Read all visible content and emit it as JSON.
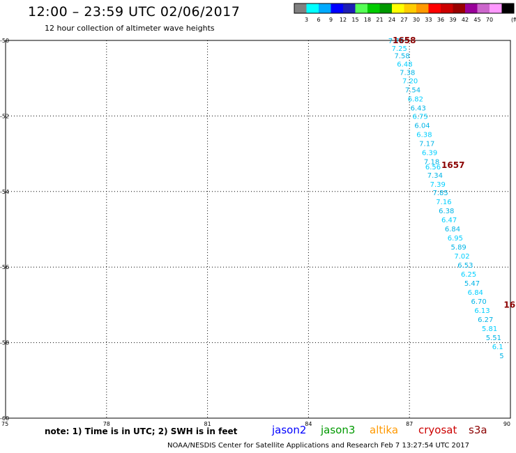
{
  "header": {
    "title": "12:00 – 23:59 UTC 02/06/2017",
    "subtitle": "12 hour collection of altimeter wave heights"
  },
  "colorbar": {
    "unit": "(ft)",
    "colors": [
      "#808080",
      "#00ffff",
      "#00aaff",
      "#0000ff",
      "#1e1eb4",
      "#55ff55",
      "#00cc00",
      "#009900",
      "#ffff00",
      "#ffcc00",
      "#ff9900",
      "#ff0000",
      "#cc0000",
      "#990000",
      "#990099",
      "#cc66cc",
      "#ff99ff",
      "#000000"
    ],
    "labels": [
      "3",
      "6",
      "9",
      "12",
      "15",
      "18",
      "21",
      "24",
      "27",
      "30",
      "33",
      "36",
      "39",
      "42",
      "45",
      "70"
    ]
  },
  "chart_data": {
    "type": "scatter",
    "xlim": [
      75,
      90
    ],
    "ylim": [
      -60,
      -50
    ],
    "x_ticks": [
      "75",
      "78",
      "81",
      "84",
      "87",
      "90"
    ],
    "y_ticks": [
      "-50",
      "-52",
      "-54",
      "-56",
      "-58",
      "-60"
    ],
    "grid": true,
    "observations": [
      {
        "lon": 86.6,
        "lat": -50.0,
        "label": "7.72"
      },
      {
        "lon": 86.7,
        "lat": -50.2,
        "label": "7.25"
      },
      {
        "lon": 86.78,
        "lat": -50.4,
        "label": "7.58"
      },
      {
        "lon": 86.86,
        "lat": -50.62,
        "label": "6.48"
      },
      {
        "lon": 86.94,
        "lat": -50.84,
        "label": "7.38"
      },
      {
        "lon": 87.02,
        "lat": -51.06,
        "label": "7.20"
      },
      {
        "lon": 87.1,
        "lat": -51.3,
        "label": "7.54"
      },
      {
        "lon": 87.18,
        "lat": -51.54,
        "label": "6.82"
      },
      {
        "lon": 87.26,
        "lat": -51.78,
        "label": "6.43"
      },
      {
        "lon": 87.32,
        "lat": -52.0,
        "label": "6.75"
      },
      {
        "lon": 87.38,
        "lat": -52.24,
        "label": "6.04"
      },
      {
        "lon": 87.44,
        "lat": -52.48,
        "label": "6.38"
      },
      {
        "lon": 87.52,
        "lat": -52.72,
        "label": "7.17"
      },
      {
        "lon": 87.6,
        "lat": -52.96,
        "label": "6.39"
      },
      {
        "lon": 87.66,
        "lat": -53.2,
        "label": "7.18"
      },
      {
        "lon": 87.7,
        "lat": -53.34,
        "label": "6.56"
      },
      {
        "lon": 87.76,
        "lat": -53.56,
        "label": "7.34"
      },
      {
        "lon": 87.84,
        "lat": -53.8,
        "label": "7.39"
      },
      {
        "lon": 87.92,
        "lat": -54.02,
        "label": "7.85"
      },
      {
        "lon": 88.02,
        "lat": -54.26,
        "label": "7.16"
      },
      {
        "lon": 88.1,
        "lat": -54.5,
        "label": "6.38"
      },
      {
        "lon": 88.18,
        "lat": -54.74,
        "label": "6.47"
      },
      {
        "lon": 88.28,
        "lat": -54.98,
        "label": "6.84"
      },
      {
        "lon": 88.36,
        "lat": -55.22,
        "label": "6.95"
      },
      {
        "lon": 88.46,
        "lat": -55.46,
        "label": "5.89"
      },
      {
        "lon": 88.56,
        "lat": -55.7,
        "label": "7.02"
      },
      {
        "lon": 88.66,
        "lat": -55.94,
        "label": "6.53"
      },
      {
        "lon": 88.76,
        "lat": -56.18,
        "label": "6.25"
      },
      {
        "lon": 88.86,
        "lat": -56.42,
        "label": "5.47"
      },
      {
        "lon": 88.96,
        "lat": -56.66,
        "label": "6.84"
      },
      {
        "lon": 89.06,
        "lat": -56.9,
        "label": "6.70"
      },
      {
        "lon": 89.16,
        "lat": -57.14,
        "label": "6.13"
      },
      {
        "lon": 89.26,
        "lat": -57.38,
        "label": "6.27"
      },
      {
        "lon": 89.38,
        "lat": -57.62,
        "label": "5.81"
      },
      {
        "lon": 89.5,
        "lat": -57.86,
        "label": "5.51"
      },
      {
        "lon": 89.62,
        "lat": -58.1,
        "label": "6.1"
      },
      {
        "lon": 89.74,
        "lat": -58.34,
        "label": "5"
      }
    ],
    "time_labels": [
      {
        "lon": 86.5,
        "lat": -50.0,
        "label": "1658"
      },
      {
        "lon": 87.95,
        "lat": -53.3,
        "label": "1657"
      },
      {
        "lon": 89.8,
        "lat": -57.0,
        "label": "16"
      }
    ]
  },
  "footer": {
    "note": "note: 1) Time is in UTC; 2) SWH is in feet",
    "satellites": [
      {
        "name": "jason2",
        "color": "#0000ff"
      },
      {
        "name": "jason3",
        "color": "#009900"
      },
      {
        "name": "altika",
        "color": "#ff9900"
      },
      {
        "name": "cryosat",
        "color": "#cc0000"
      },
      {
        "name": "s3a",
        "color": "#8b0000"
      }
    ],
    "credit": "NOAA/NESDIS Center for Satellite Applications and Research   Feb  7 13:27:54 UTC 2017"
  }
}
